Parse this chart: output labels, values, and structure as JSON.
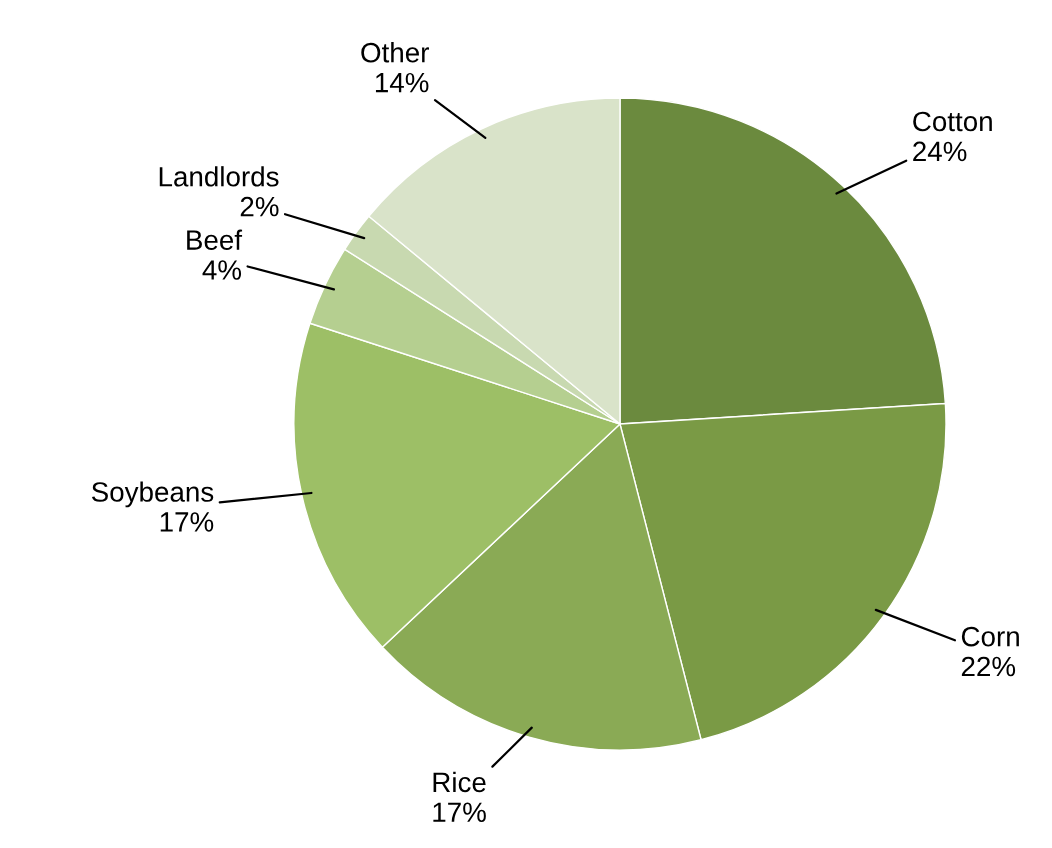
{
  "chart_data": {
    "type": "pie",
    "categories": [
      "Cotton",
      "Corn",
      "Rice",
      "Soybeans",
      "Beef",
      "Landlords",
      "Other"
    ],
    "values": [
      24,
      22,
      17,
      17,
      4,
      2,
      14
    ],
    "value_labels": [
      "24%",
      "22%",
      "17%",
      "17%",
      "4%",
      "2%",
      "14%"
    ],
    "colors": [
      "#6b8a3e",
      "#7a9a45",
      "#8aaa55",
      "#9dbf66",
      "#b5cf90",
      "#c8d9b0",
      "#d9e3c9"
    ]
  }
}
